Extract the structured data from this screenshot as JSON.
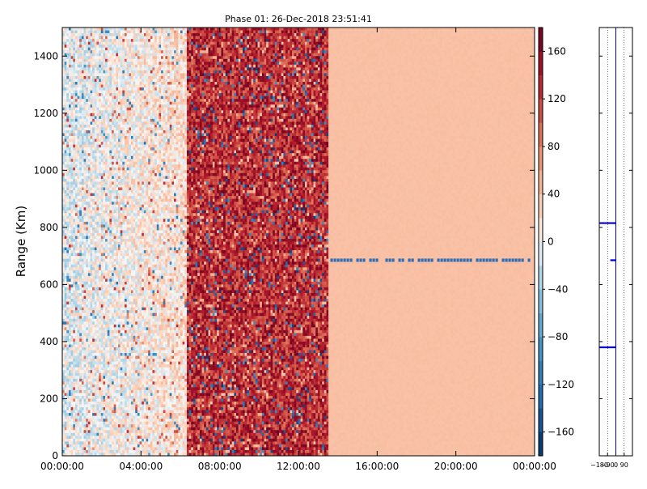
{
  "chart_data": [
    {
      "type": "heatmap",
      "title": "Phase 01: 26-Dec-2018 23:51:41",
      "ylabel": "Range (Km)",
      "xlabel": "",
      "x_ticks": [
        "00:00:00",
        "04:00:00",
        "08:00:00",
        "12:00:00",
        "16:00:00",
        "20:00:00",
        "00:00:00"
      ],
      "x_range_hours": [
        0,
        24
      ],
      "y_ticks": [
        0,
        200,
        400,
        600,
        800,
        1000,
        1200,
        1400
      ],
      "ylim": [
        0,
        1500
      ],
      "colorbar": {
        "ticks": [
          160,
          120,
          80,
          40,
          0,
          -40,
          -80,
          -120,
          -160
        ],
        "range": [
          -180,
          180
        ],
        "colormap": "RdBu_r"
      },
      "regions": [
        {
          "hours": [
            0,
            6.3
          ],
          "description": "mixed near-zero phase, mostly light blue / light red",
          "typical_value": 10
        },
        {
          "hours": [
            6.3,
            13.5
          ],
          "description": "strong positive phase, dark red with scattered blue",
          "typical_value": 130
        },
        {
          "hours": [
            13.5,
            24
          ],
          "description": "uniform light orange",
          "typical_value": 40
        }
      ],
      "features": [
        {
          "type": "horizontal_line",
          "range_km": 685,
          "hours": [
            13.5,
            24
          ],
          "value": -160
        }
      ]
    },
    {
      "type": "line",
      "title": "",
      "x_ticks": [
        -180,
        -90,
        0,
        90
      ],
      "xlim": [
        -180,
        180
      ],
      "ylim": [
        0,
        1500
      ],
      "grid": "vertical dotted",
      "profile_baseline": 0,
      "spikes": [
        {
          "range_km": 815,
          "value": -180
        },
        {
          "range_km": 685,
          "value": -60
        },
        {
          "range_km": 380,
          "value": -180
        }
      ]
    }
  ],
  "colors": {
    "axis": "#000000",
    "profile_line": "#0000cc",
    "missing_line": "#2b6db6"
  }
}
